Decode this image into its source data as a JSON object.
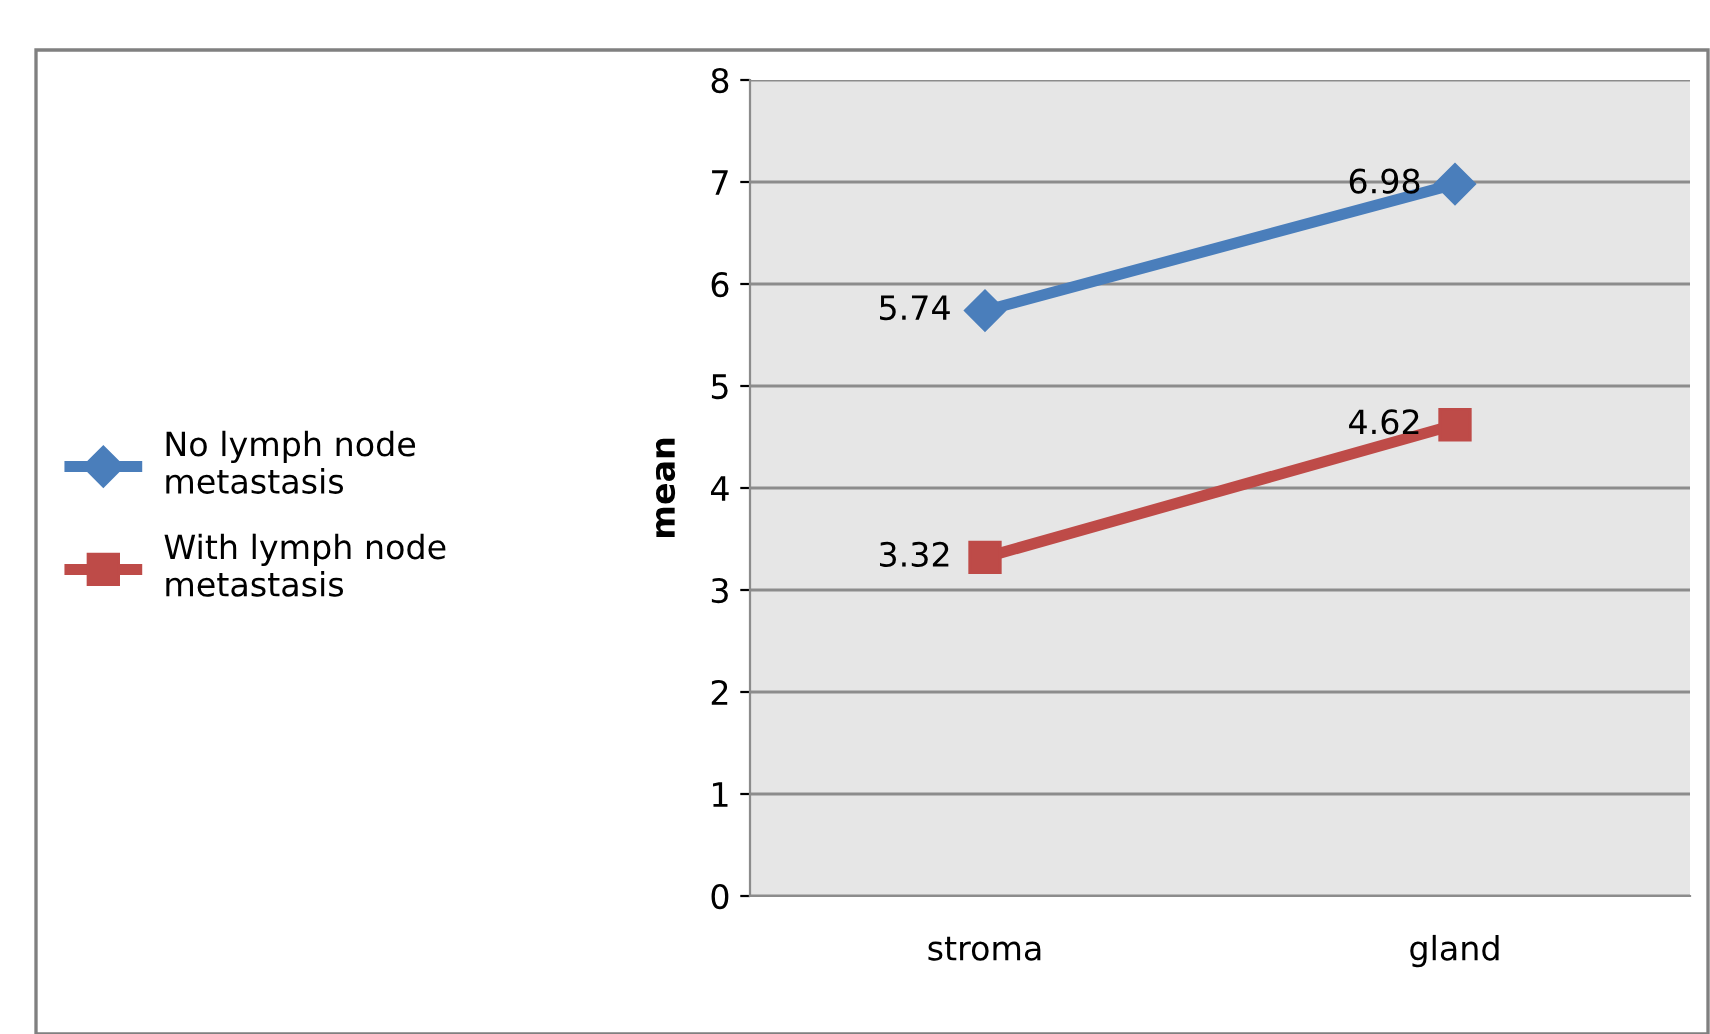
{
  "chart_data": {
    "type": "line",
    "ylabel": "mean",
    "categories": [
      "stroma",
      "gland"
    ],
    "series": [
      {
        "name": "No lymph node\nmetastasis",
        "color": "#4a7ebb",
        "marker": "diamond",
        "values": [
          5.74,
          6.98
        ]
      },
      {
        "name": "With lymph node\nmetastasis",
        "color": "#be4b48",
        "marker": "square",
        "values": [
          3.32,
          4.62
        ]
      }
    ],
    "ylim": [
      0,
      8
    ],
    "yticks": [
      0,
      1,
      2,
      3,
      4,
      5,
      6,
      7,
      8
    ],
    "grid": "y",
    "legend": "left",
    "data_labels": true
  }
}
